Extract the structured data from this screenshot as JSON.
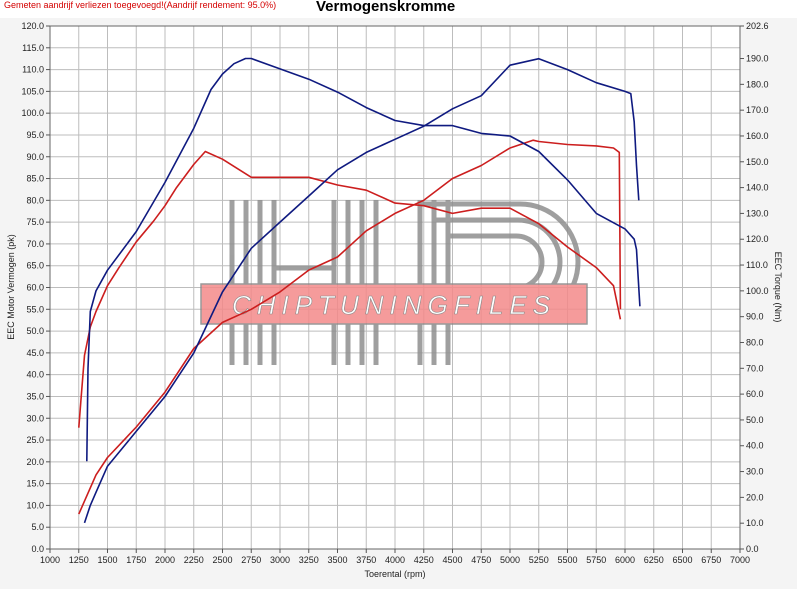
{
  "header": {
    "note": "Gemeten aandrijf verliezen toegevoegd!(Aandrijf rendement: 95.0%)",
    "title": "Vermogenskromme"
  },
  "watermark": {
    "logo_text": "HP",
    "brand": "CHIPTUNINGFILES"
  },
  "colors": {
    "stock": "#cc1e1e",
    "tuned": "#0f1a80",
    "grid": "#bdbdbd"
  },
  "chart_data": {
    "type": "line",
    "title": "Vermogenskromme",
    "xlabel": "Toerental (rpm)",
    "ylabel": "EEC Motor Vermogen (pk)",
    "y2label": "EEC Torque (Nm)",
    "xlim": [
      1000,
      7000
    ],
    "ylim": [
      0,
      120
    ],
    "y2lim": [
      0,
      202.6
    ],
    "x_ticks": [
      1000,
      1250,
      1500,
      1750,
      2000,
      2250,
      2500,
      2750,
      3000,
      3250,
      3500,
      3750,
      4000,
      4250,
      4500,
      4750,
      5000,
      5250,
      5500,
      5750,
      6000,
      6250,
      6500,
      6750,
      7000
    ],
    "y_ticks": [
      0,
      5,
      10,
      15,
      20,
      25,
      30,
      35,
      40,
      45,
      50,
      55,
      60,
      65,
      70,
      75,
      80,
      85,
      90,
      95,
      100,
      105,
      110,
      115,
      120
    ],
    "y_tick_labels": [
      "0.0",
      "5.0",
      "10.0",
      "15.0",
      "20.0",
      "25.0",
      "30.0",
      "35.0",
      "40.0",
      "45.0",
      "50.0",
      "55.0",
      "60.0",
      "65.0",
      "70.0",
      "75.0",
      "80.0",
      "85.0",
      "90.0",
      "95.0",
      "100.0",
      "105.0",
      "110.0",
      "115.0",
      "120.0"
    ],
    "y2_ticks": [
      0,
      10,
      20,
      30,
      40,
      50,
      60,
      70,
      80,
      90,
      100,
      110,
      120,
      130,
      140,
      150,
      160,
      170,
      180,
      190,
      202.6
    ],
    "y2_tick_labels": [
      "0.0",
      "10.0",
      "20.0",
      "30.0",
      "40.0",
      "50.0",
      "60.0",
      "70.0",
      "80.0",
      "90.0",
      "100.0",
      "110.0",
      "120.0",
      "130.0",
      "140.0",
      "150.0",
      "160.0",
      "170.0",
      "180.0",
      "190.0",
      "202.6"
    ],
    "grid": true,
    "series": [
      {
        "axis": "y2",
        "color": "#cc1e1e",
        "x": [
          1250,
          1270,
          1300,
          1350,
          1400,
          1500,
          1600,
          1750,
          1900,
          2000,
          2100,
          2250,
          2350,
          2500,
          2750,
          3000,
          3250,
          3500,
          3750,
          4000,
          4250,
          4500,
          4750,
          5000,
          5250,
          5500,
          5750,
          5900,
          5960
        ],
        "y": [
          47,
          58,
          75,
          86,
          92,
          102,
          109,
          119,
          127,
          133,
          140,
          149,
          154,
          151,
          144,
          144,
          144,
          141,
          139,
          134,
          133,
          130,
          132,
          132,
          126,
          117,
          109,
          102,
          89
        ]
      },
      {
        "axis": "y",
        "color": "#cc1e1e",
        "x": [
          1250,
          1300,
          1400,
          1500,
          1750,
          2000,
          2250,
          2500,
          2750,
          3000,
          3250,
          3500,
          3750,
          4000,
          4250,
          4500,
          4750,
          5000,
          5200,
          5250,
          5500,
          5750,
          5900,
          5950,
          5960
        ],
        "y": [
          8,
          11,
          17,
          21,
          28,
          36,
          46,
          52,
          55,
          59,
          64,
          67,
          73,
          77,
          80,
          85,
          88,
          92,
          93.8,
          93.5,
          92.8,
          92.5,
          92,
          91,
          55
        ]
      },
      {
        "axis": "y",
        "color": "#0f1a80",
        "x": [
          1300,
          1350,
          1400,
          1500,
          1750,
          2000,
          2250,
          2500,
          2750,
          3000,
          3250,
          3500,
          3750,
          4000,
          4250,
          4500,
          4750,
          5000,
          5250,
          5500,
          5750,
          6000,
          6050,
          6080,
          6100,
          6120
        ],
        "y": [
          6,
          10,
          13,
          19,
          27,
          35,
          45,
          59,
          69,
          75,
          81,
          87,
          91,
          94,
          97,
          101,
          104,
          111,
          112.5,
          110,
          107,
          105,
          104.5,
          98,
          88,
          80
        ]
      },
      {
        "axis": "y2",
        "color": "#0f1a80",
        "x": [
          1320,
          1330,
          1350,
          1400,
          1500,
          1750,
          2000,
          2250,
          2400,
          2500,
          2600,
          2700,
          2750,
          3000,
          3250,
          3500,
          3750,
          4000,
          4250,
          4500,
          4750,
          5000,
          5250,
          5500,
          5750,
          6000,
          6080,
          6100,
          6130
        ],
        "y": [
          34,
          70,
          92,
          100,
          108,
          123,
          142,
          163,
          178,
          184,
          188,
          190,
          190,
          186,
          182,
          177,
          171,
          166,
          164,
          164,
          161,
          160,
          154,
          143,
          130,
          124,
          120,
          116,
          94
        ]
      }
    ]
  }
}
